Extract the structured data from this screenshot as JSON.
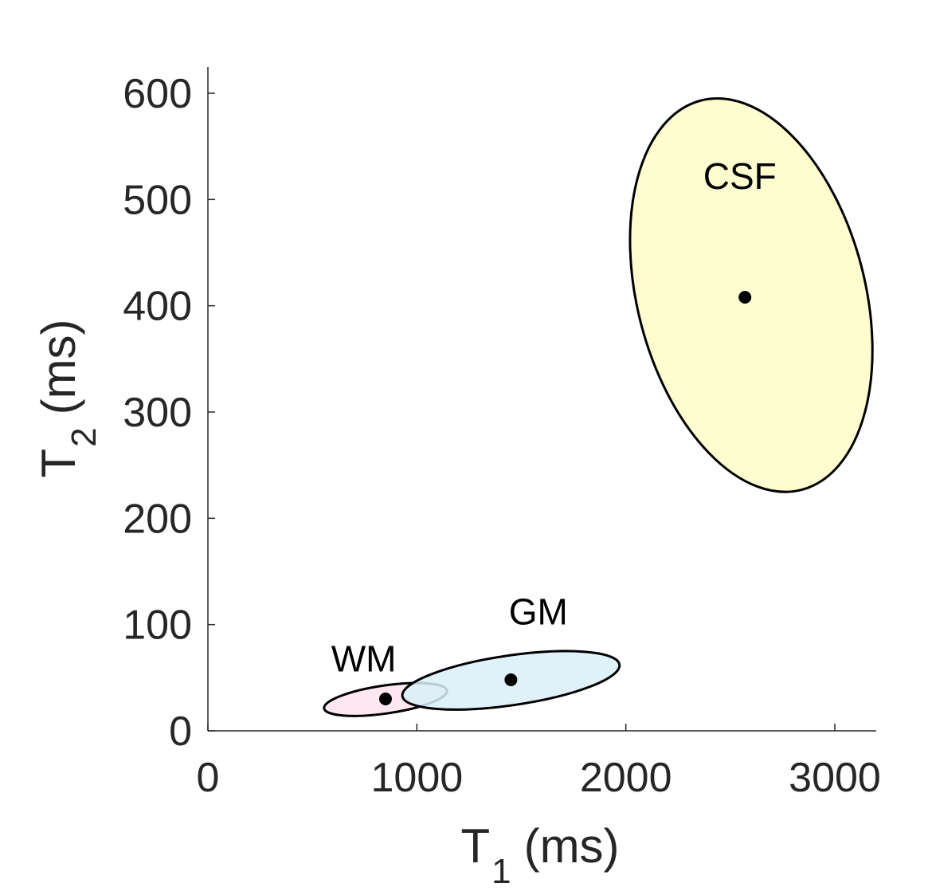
{
  "chart_data": {
    "type": "scatter",
    "title": "",
    "xlabel": {
      "main": "T",
      "sub": "1",
      "unit": "(ms)"
    },
    "ylabel": {
      "main": "T",
      "sub": "2",
      "unit": "(ms)"
    },
    "xlim": [
      0,
      3200
    ],
    "ylim": [
      0,
      625
    ],
    "xticks": [
      0,
      1000,
      2000,
      3000
    ],
    "yticks": [
      0,
      100,
      200,
      300,
      400,
      500,
      600
    ],
    "xtick_labels": [
      "0",
      "1000",
      "2000",
      "3000"
    ],
    "ytick_labels": [
      "0",
      "100",
      "200",
      "300",
      "400",
      "500",
      "600"
    ],
    "grid": false,
    "series": [
      {
        "name": "WM",
        "center": {
          "x": 850,
          "y": 30
        },
        "ellipse": {
          "x_min": 550,
          "x_max": 1150,
          "y_min": 14,
          "y_max": 45,
          "tilt": "rising"
        },
        "fill": "#fde4ef",
        "label_at": {
          "x": 590,
          "y": 56
        }
      },
      {
        "name": "GM",
        "center": {
          "x": 1450,
          "y": 48
        },
        "ellipse": {
          "x_min": 920,
          "x_max": 1980,
          "y_min": 20,
          "y_max": 75,
          "tilt": "rising"
        },
        "fill": "#d9eef8",
        "label_at": {
          "x": 1440,
          "y": 100
        }
      },
      {
        "name": "CSF",
        "center": {
          "x": 2570,
          "y": 408
        },
        "ellipse": {
          "x_min": 2020,
          "x_max": 3180,
          "y_min": 225,
          "y_max": 595,
          "tilt": "falling"
        },
        "fill": "#fdfdc7",
        "label_at": {
          "x": 2370,
          "y": 510
        }
      }
    ]
  }
}
